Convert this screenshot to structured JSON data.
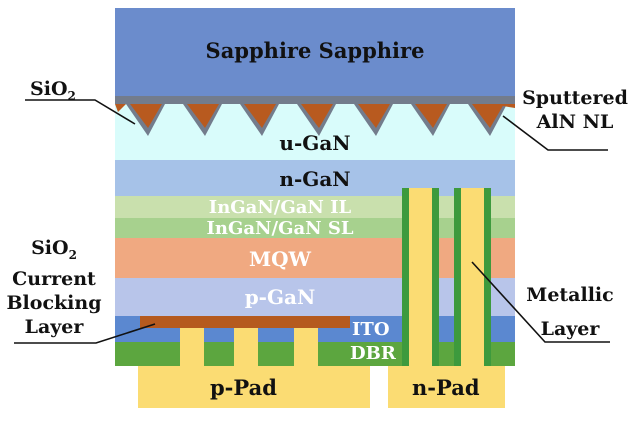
{
  "layers": {
    "sapphire": "Sapphire Sapphire",
    "u_gan": "u-GaN",
    "n_gan": "n-GaN",
    "il": "InGaN/GaN IL",
    "sl": "InGaN/GaN SL",
    "mqw": "MQW",
    "p_gan": "p-GaN",
    "ito": "ITO",
    "dbr": "DBR"
  },
  "pads": {
    "p_pad": "p-Pad",
    "n_pad": "n-Pad"
  },
  "callouts": {
    "sio2_top": {
      "main": "SiO",
      "sub": "2"
    },
    "sputtered": {
      "line1": "Sputtered",
      "line2": "AlN NL"
    },
    "sio2_cbl": {
      "line1_main": "SiO",
      "line1_sub": "2",
      "line2": "Current",
      "line3": "Blocking",
      "line4": "Layer"
    },
    "metallic": {
      "line1": "Metallic",
      "line2": "Layer"
    }
  },
  "colors": {
    "sapphire": "#6b8ccc",
    "aln": "#737c8c",
    "patterned": "#b85a1f",
    "u_gan": "#d9fcfb",
    "n_gan": "#a6c2e8",
    "il": "#c9e0ad",
    "sl": "#a7d18e",
    "mqw": "#f0a981",
    "p_gan": "#b8c5ea",
    "ito": "#5b88d0",
    "dbr": "#5ca63f",
    "pad": "#fbdc73",
    "cbl": "#b55a1e",
    "metal_green": "#3d9a3d"
  }
}
